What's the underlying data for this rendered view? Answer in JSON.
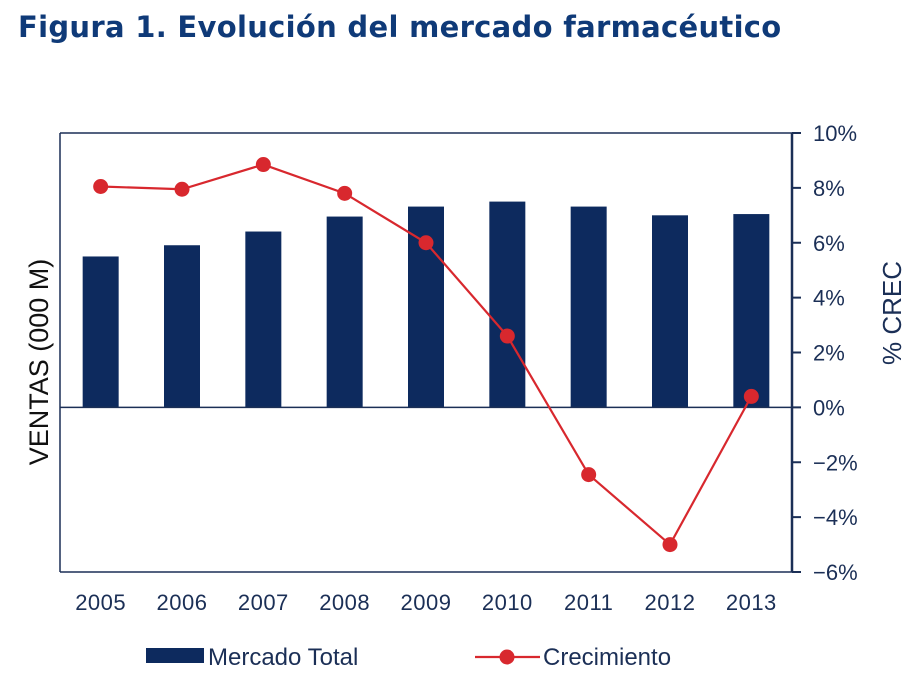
{
  "title": "Figura 1. Evolución del mercado farmacéutico",
  "colors": {
    "title": "#0f3a78",
    "bars": "#0d2a5e",
    "line": "#d8282e",
    "axis": "#1b2f56"
  },
  "chart_data": {
    "type": "bar",
    "categories": [
      "2005",
      "2006",
      "2007",
      "2008",
      "2009",
      "2010",
      "2011",
      "2012",
      "2013"
    ],
    "ylabel": "VENTAS (000 M)",
    "y2label": "% CREC",
    "y2lim": [
      -6,
      10
    ],
    "y2ticks": [
      "10%",
      "8%",
      "6%",
      "4%",
      "2%",
      "0%",
      "−2%",
      "−4%",
      "−6%"
    ],
    "series": [
      {
        "name": "Mercado Total",
        "type": "bar",
        "axis": "left",
        "values": [
          6.05,
          6.5,
          7.05,
          7.65,
          8.05,
          8.25,
          8.05,
          7.7,
          7.75
        ]
      },
      {
        "name": "Crecimiento",
        "type": "line",
        "axis": "right",
        "values": [
          8.05,
          7.95,
          8.85,
          7.8,
          6.0,
          2.6,
          -2.45,
          -5.0,
          0.4
        ]
      }
    ],
    "legend": "bottom",
    "grid": false
  }
}
